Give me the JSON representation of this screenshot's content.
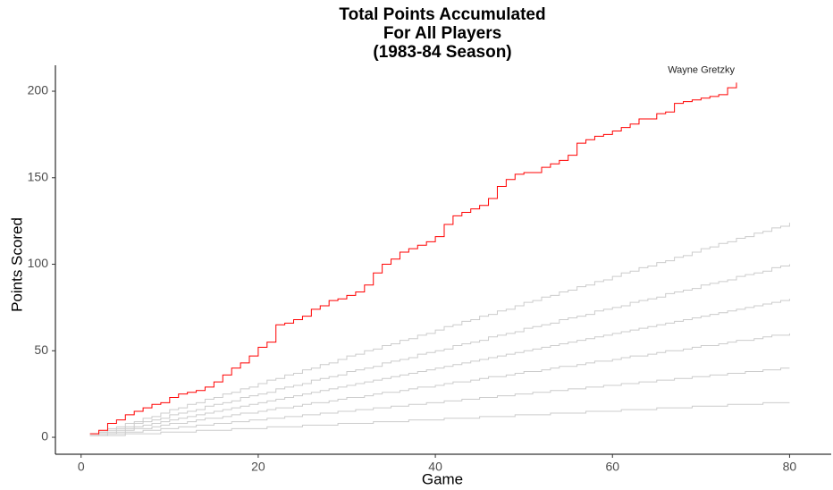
{
  "chart_data": {
    "type": "step-line",
    "title": [
      "Total Points Accumulated",
      "For All Players",
      "(1983-84 Season)"
    ],
    "x_label": "Game",
    "y_label": "Points Scored",
    "xlim": [
      -2.9,
      84.7
    ],
    "ylim": [
      -9.8,
      215
    ],
    "xticks": [
      0,
      20,
      40,
      60,
      80
    ],
    "yticks": [
      0,
      50,
      100,
      150,
      200
    ],
    "grid": false,
    "x": [
      1,
      2,
      3,
      4,
      5,
      6,
      7,
      8,
      9,
      10,
      11,
      12,
      13,
      14,
      15,
      16,
      17,
      18,
      19,
      20,
      21,
      22,
      23,
      24,
      25,
      26,
      27,
      28,
      29,
      30,
      31,
      32,
      33,
      34,
      35,
      36,
      37,
      38,
      39,
      40,
      41,
      42,
      43,
      44,
      45,
      46,
      47,
      48,
      49,
      50,
      51,
      52,
      53,
      54,
      55,
      56,
      57,
      58,
      59,
      60,
      61,
      62,
      63,
      64,
      65,
      66,
      67,
      68,
      69,
      70,
      71,
      72,
      73,
      74,
      75,
      76,
      77,
      78,
      79,
      80
    ],
    "series": [
      {
        "color": "#cccccc",
        "values": [
          2,
          3,
          5,
          6,
          8,
          9,
          11,
          12,
          14,
          16,
          17,
          19,
          20,
          22,
          23,
          25,
          26,
          28,
          29,
          31,
          33,
          34,
          36,
          37,
          39,
          40,
          42,
          43,
          45,
          47,
          48,
          50,
          51,
          53,
          54,
          56,
          57,
          59,
          60,
          62,
          64,
          65,
          67,
          68,
          70,
          71,
          73,
          74,
          76,
          78,
          79,
          81,
          82,
          84,
          85,
          87,
          88,
          90,
          91,
          93,
          95,
          96,
          98,
          99,
          101,
          102,
          104,
          105,
          107,
          109,
          110,
          112,
          113,
          115,
          116,
          118,
          119,
          121,
          122,
          124
        ]
      },
      {
        "color": "#cccccc",
        "values": [
          1,
          3,
          4,
          5,
          6,
          8,
          9,
          10,
          11,
          13,
          14,
          15,
          16,
          18,
          19,
          20,
          21,
          23,
          24,
          25,
          26,
          28,
          29,
          30,
          31,
          33,
          34,
          35,
          36,
          38,
          39,
          40,
          41,
          43,
          44,
          45,
          46,
          48,
          49,
          50,
          51,
          53,
          54,
          55,
          56,
          58,
          59,
          60,
          61,
          63,
          64,
          65,
          66,
          68,
          69,
          70,
          71,
          73,
          74,
          75,
          76,
          78,
          79,
          80,
          81,
          83,
          84,
          85,
          86,
          88,
          89,
          90,
          91,
          93,
          94,
          95,
          96,
          98,
          99,
          100
        ]
      },
      {
        "color": "#cccccc",
        "values": [
          1,
          2,
          3,
          4,
          5,
          6,
          7,
          8,
          9,
          10,
          11,
          12,
          13,
          14,
          15,
          16,
          17,
          18,
          19,
          20,
          21,
          22,
          23,
          24,
          25,
          26,
          27,
          28,
          29,
          30,
          31,
          32,
          33,
          34,
          35,
          36,
          37,
          38,
          39,
          40,
          41,
          42,
          43,
          44,
          45,
          46,
          47,
          48,
          49,
          50,
          51,
          52,
          53,
          54,
          55,
          56,
          57,
          58,
          59,
          60,
          61,
          62,
          63,
          64,
          65,
          66,
          67,
          68,
          69,
          70,
          71,
          72,
          73,
          74,
          75,
          76,
          77,
          78,
          79,
          80
        ]
      },
      {
        "color": "#cccccc",
        "values": [
          1,
          2,
          2,
          3,
          4,
          5,
          5,
          6,
          7,
          8,
          8,
          9,
          10,
          11,
          11,
          12,
          13,
          14,
          14,
          15,
          16,
          17,
          17,
          18,
          19,
          20,
          20,
          21,
          22,
          23,
          23,
          24,
          25,
          26,
          26,
          27,
          28,
          29,
          29,
          30,
          31,
          32,
          32,
          33,
          34,
          35,
          35,
          36,
          37,
          38,
          38,
          39,
          40,
          41,
          41,
          42,
          43,
          44,
          44,
          45,
          46,
          47,
          47,
          48,
          49,
          50,
          50,
          51,
          52,
          53,
          53,
          54,
          55,
          56,
          56,
          57,
          58,
          59,
          59,
          60
        ]
      },
      {
        "color": "#cccccc",
        "values": [
          1,
          1,
          2,
          2,
          3,
          3,
          4,
          4,
          5,
          5,
          6,
          6,
          7,
          7,
          8,
          8,
          9,
          9,
          10,
          10,
          11,
          11,
          12,
          12,
          13,
          13,
          14,
          14,
          15,
          15,
          16,
          16,
          17,
          17,
          18,
          18,
          19,
          19,
          20,
          20,
          21,
          21,
          22,
          22,
          23,
          23,
          24,
          24,
          25,
          25,
          26,
          26,
          27,
          27,
          28,
          28,
          29,
          29,
          30,
          30,
          31,
          31,
          32,
          32,
          33,
          33,
          34,
          34,
          35,
          35,
          36,
          36,
          37,
          37,
          38,
          38,
          39,
          39,
          40,
          40
        ]
      },
      {
        "color": "#cccccc",
        "values": [
          1,
          1,
          1,
          1,
          2,
          2,
          2,
          2,
          3,
          3,
          3,
          3,
          4,
          4,
          4,
          4,
          5,
          5,
          5,
          5,
          6,
          6,
          6,
          6,
          7,
          7,
          7,
          7,
          8,
          8,
          8,
          8,
          9,
          9,
          9,
          9,
          10,
          10,
          10,
          10,
          11,
          11,
          11,
          11,
          12,
          12,
          12,
          12,
          13,
          13,
          13,
          13,
          14,
          14,
          14,
          14,
          15,
          15,
          15,
          15,
          16,
          16,
          16,
          16,
          17,
          17,
          17,
          17,
          18,
          18,
          18,
          18,
          19,
          19,
          19,
          19,
          20,
          20,
          20,
          20
        ]
      },
      {
        "name": "Wayne Gretzky",
        "color": "#ff0000",
        "values": [
          2,
          4,
          8,
          10,
          13,
          15,
          17,
          19,
          20,
          23,
          25,
          26,
          27,
          29,
          32,
          36,
          40,
          43,
          47,
          52,
          55,
          65,
          66,
          68,
          70,
          74,
          76,
          79,
          80,
          82,
          84,
          88,
          95,
          100,
          103,
          107,
          109,
          111,
          113,
          116,
          123,
          128,
          130,
          132,
          134,
          138,
          145,
          149,
          152,
          153,
          153,
          156,
          158,
          160,
          163,
          170,
          172,
          174,
          175,
          177,
          179,
          181,
          184,
          184,
          187,
          188,
          193,
          194,
          195,
          196,
          197,
          198,
          202,
          205,
          null,
          null,
          null,
          null,
          null,
          null
        ]
      }
    ]
  }
}
